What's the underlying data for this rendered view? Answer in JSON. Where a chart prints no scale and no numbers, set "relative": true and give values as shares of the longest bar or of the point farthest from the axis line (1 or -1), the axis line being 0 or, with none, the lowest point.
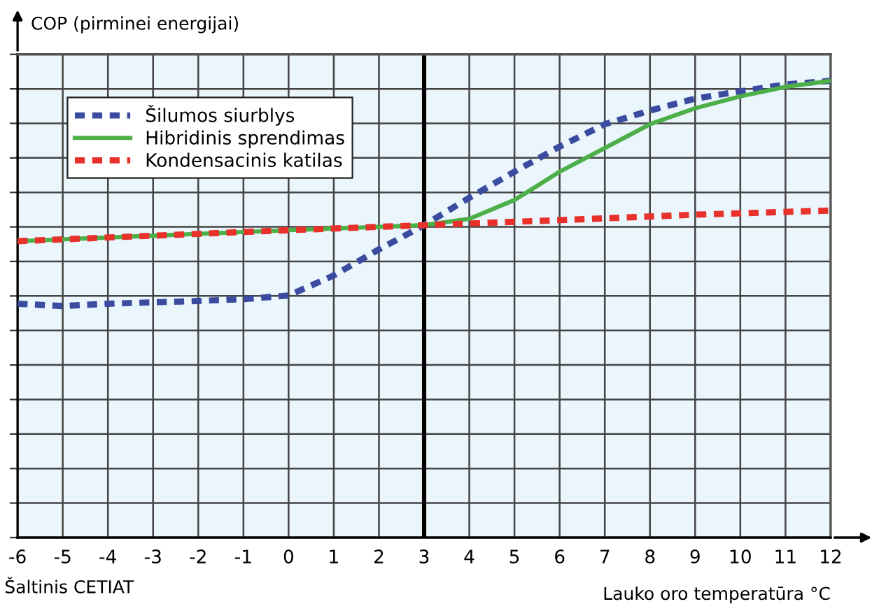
{
  "chart_data": {
    "type": "line",
    "relative": true,
    "ylabel": "COP (pirminei energijai)",
    "xlabel": "Lauko oro temperatūra °C",
    "annotations": [
      "Šaltinis CETIAT"
    ],
    "xlim": [
      -6,
      12
    ],
    "xticks": [
      -6,
      -5,
      -4,
      -3,
      -2,
      -1,
      0,
      1,
      2,
      3,
      4,
      5,
      6,
      7,
      8,
      9,
      10,
      11,
      12
    ],
    "grid": true,
    "legend": "top left",
    "tick_labels": "x",
    "marker": "none",
    "ref_lines": [
      {
        "axis": "x",
        "value": 3,
        "color": "#000000",
        "line_style": "solid"
      }
    ],
    "series": [
      {
        "name": "Šilumos siurblys",
        "color": "#3a4ba0",
        "line_style": "dotted",
        "x": [
          -6,
          -5,
          -4,
          -3,
          -2,
          -1,
          0,
          1,
          2,
          3,
          4,
          5,
          6,
          7,
          8,
          9,
          10,
          11,
          12
        ],
        "values": [
          0.512,
          0.507,
          0.512,
          0.515,
          0.518,
          0.522,
          0.53,
          0.574,
          0.631,
          0.684,
          0.744,
          0.801,
          0.856,
          0.905,
          0.935,
          0.961,
          0.977,
          0.992,
          1
        ]
      },
      {
        "name": "Hibridinis sprendimas",
        "color": "#4daf48",
        "line_style": "solid",
        "x": [
          -6,
          -3,
          0,
          3,
          4,
          5,
          6,
          7,
          8,
          9,
          10,
          11,
          12
        ],
        "values": [
          0.649,
          0.661,
          0.673,
          0.684,
          0.698,
          0.739,
          0.801,
          0.853,
          0.905,
          0.94,
          0.966,
          0.987,
          1
        ]
      },
      {
        "name": "Kondensacinis katilas",
        "color": "#e8312b",
        "line_style": "dotted",
        "x": [
          -6,
          -3,
          0,
          3,
          6,
          9,
          12
        ],
        "values": [
          0.649,
          0.661,
          0.673,
          0.684,
          0.695,
          0.707,
          0.716
        ]
      }
    ]
  }
}
